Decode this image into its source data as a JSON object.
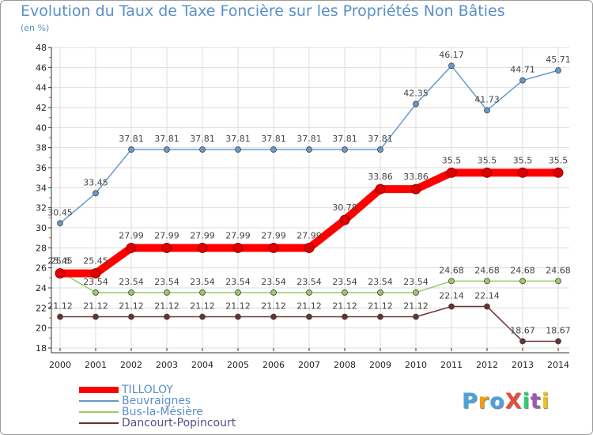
{
  "chart_data": {
    "type": "line",
    "title": "Evolution du Taux de Taxe Foncière sur les Propriétés Non Bâties",
    "ylabel": "(en %)",
    "xlabel": "",
    "ylim": [
      18,
      48
    ],
    "yticks": [
      "18",
      "20",
      "22",
      "24",
      "26",
      "28",
      "30",
      "32",
      "34",
      "36",
      "38",
      "40",
      "42",
      "44",
      "46",
      "48"
    ],
    "categories": [
      "2000",
      "2001",
      "2002",
      "2003",
      "2004",
      "2005",
      "2006",
      "2007",
      "2008",
      "2009",
      "2010",
      "2011",
      "2012",
      "2013",
      "2014"
    ],
    "series": [
      {
        "name": "TILLOLOY",
        "color": "#ff0000",
        "values": [
          25.45,
          25.45,
          27.99,
          27.99,
          27.99,
          27.99,
          27.99,
          27.99,
          30.78,
          33.86,
          33.86,
          35.5,
          35.5,
          35.5,
          35.5
        ],
        "labels": [
          "25.45",
          "25.45",
          "27.99",
          "27.99",
          "27.99",
          "27.99",
          "27.99",
          "27.99",
          "30.78",
          "33.86",
          "33.86",
          "35.5",
          "35.5",
          "35.5",
          "35.5"
        ]
      },
      {
        "name": "Beuvraignes",
        "color": "#6699cc",
        "values": [
          30.45,
          33.45,
          37.81,
          37.81,
          37.81,
          37.81,
          37.81,
          37.81,
          37.81,
          37.81,
          42.35,
          46.17,
          41.73,
          44.71,
          45.71
        ],
        "labels": [
          "30.45",
          "33.45",
          "37.81",
          "37.81",
          "37.81",
          "37.81",
          "37.81",
          "37.81",
          "37.81",
          "37.81",
          "42.35",
          "46.17",
          "41.73",
          "44.71",
          "45.71"
        ]
      },
      {
        "name": "Bus-la-Mésière",
        "color": "#99cc66",
        "values": [
          25.6,
          23.54,
          23.54,
          23.54,
          23.54,
          23.54,
          23.54,
          23.54,
          23.54,
          23.54,
          23.54,
          24.68,
          24.68,
          24.68,
          24.68
        ],
        "labels": [
          "25.6",
          "23.54",
          "23.54",
          "23.54",
          "23.54",
          "23.54",
          "23.54",
          "23.54",
          "23.54",
          "23.54",
          "23.54",
          "24.68",
          "24.68",
          "24.68",
          "24.68"
        ]
      },
      {
        "name": "Dancourt-Popincourt",
        "color": "#663333",
        "values": [
          21.12,
          21.12,
          21.12,
          21.12,
          21.12,
          21.12,
          21.12,
          21.12,
          21.12,
          21.12,
          21.12,
          22.14,
          22.14,
          18.67,
          18.67
        ],
        "labels": [
          "21.12",
          "21.12",
          "21.12",
          "21.12",
          "21.12",
          "21.12",
          "21.12",
          "21.12",
          "21.12",
          "21.12",
          "21.12",
          "22.14",
          "22.14",
          "18.67",
          "18.67"
        ]
      }
    ]
  },
  "legend": {
    "items": [
      {
        "name": "TILLOLOY",
        "color": "#ff0000"
      },
      {
        "name": "Beuvraignes",
        "color": "#6699cc"
      },
      {
        "name": "Bus-la-Mésière",
        "color": "#99cc66"
      },
      {
        "name": "Dancourt-Popincourt",
        "color": "#663333"
      }
    ]
  },
  "logo": {
    "text": "ProXiti",
    "letters": [
      {
        "ch": "P",
        "color": "#4aa3df"
      },
      {
        "ch": "r",
        "color": "#f39c12"
      },
      {
        "ch": "o",
        "color": "#4aa3df"
      },
      {
        "ch": "X",
        "color": "#e74c3c"
      },
      {
        "ch": "i",
        "color": "#2ecc71"
      },
      {
        "ch": "t",
        "color": "#9b59b6"
      },
      {
        "ch": "i",
        "color": "#f1c40f"
      }
    ]
  },
  "colors": {
    "title": "#5b8fc9",
    "grid": "#dddddd",
    "axis": "#333333"
  }
}
